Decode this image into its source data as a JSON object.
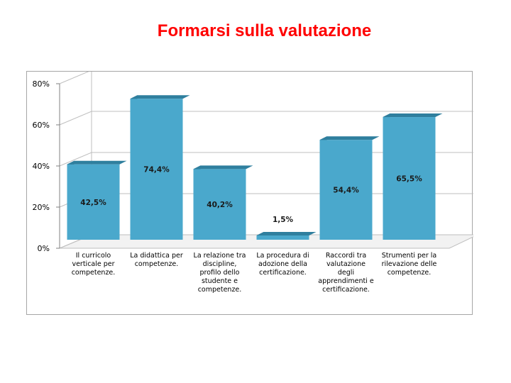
{
  "slide": {
    "title": "Formarsi sulla valutazione"
  },
  "colors": {
    "title": "#ff0000",
    "bar_front": "#4aa8cc",
    "bar_top": "#2f7f9e",
    "bar_side": "#1f5a74",
    "grid": "#bfbfbf"
  },
  "chart_data": {
    "type": "bar",
    "title": "",
    "xlabel": "",
    "ylabel": "",
    "ylim": [
      0,
      80
    ],
    "yticks": [
      "0%",
      "20%",
      "40%",
      "60%",
      "80%"
    ],
    "grid": true,
    "categories": [
      "Il curricolo verticale per competenze.",
      "La didattica per competenze.",
      "La relazione tra discipline, profilo dello studente e competenze.",
      "La procedura di adozione della certificazione.",
      "Raccordi tra valutazione degli apprendimenti e certificazione.",
      "Strumenti per la rilevazione delle competenze."
    ],
    "category_lines": [
      [
        "Il curricolo",
        "verticale per",
        "competenze."
      ],
      [
        "La didattica per",
        "competenze."
      ],
      [
        "La relazione tra",
        "discipline,",
        "profilo dello",
        "studente e",
        "competenze."
      ],
      [
        "La procedura di",
        "adozione della",
        "certificazione."
      ],
      [
        "Raccordi tra",
        "valutazione",
        "degli",
        "apprendimenti e",
        "certificazione."
      ],
      [
        "Strumenti per la",
        "rilevazione delle",
        "competenze."
      ]
    ],
    "values": [
      42.5,
      74.4,
      40.2,
      1.5,
      54.4,
      65.5
    ],
    "data_labels": [
      "42,5%",
      "74,4%",
      "40,2%",
      "1,5%",
      "54,4%",
      "65,5%"
    ]
  }
}
